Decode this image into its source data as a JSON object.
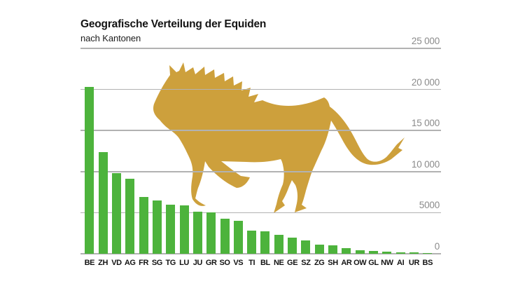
{
  "header": {
    "title": "Geografische Verteilung der Equiden",
    "subtitle": "nach Kantonen"
  },
  "chart_data": {
    "type": "bar",
    "title": "Geografische Verteilung der Equiden",
    "subtitle": "nach Kantonen",
    "categories": [
      "BE",
      "ZH",
      "VD",
      "AG",
      "FR",
      "SG",
      "TG",
      "LU",
      "JU",
      "GR",
      "SO",
      "VS",
      "TI",
      "BL",
      "NE",
      "GE",
      "SZ",
      "ZG",
      "SH",
      "AR",
      "OW",
      "GL",
      "NW",
      "AI",
      "UR",
      "BS"
    ],
    "values": [
      20300,
      12400,
      9800,
      9100,
      6900,
      6500,
      6000,
      5900,
      5100,
      5000,
      4300,
      4000,
      2800,
      2700,
      2300,
      2000,
      1600,
      1100,
      1000,
      650,
      400,
      350,
      250,
      200,
      150,
      100
    ],
    "xlabel": "",
    "ylabel": "",
    "ylim": [
      0,
      25000
    ],
    "yticks": [
      0,
      5000,
      10000,
      15000,
      20000,
      25000
    ],
    "ytick_labels": [
      "0",
      "5000",
      "10 000",
      "15 000",
      "20 000",
      "25 000"
    ],
    "grid": true,
    "legend": "none",
    "colors": {
      "bar": "#4DB33C",
      "horse": "#CDA03C",
      "gridline": "#b2b2b2",
      "ytick_text": "#8b8b8b",
      "xtick_text": "#141414"
    },
    "decoration": "galloping-horse-silhouette"
  }
}
